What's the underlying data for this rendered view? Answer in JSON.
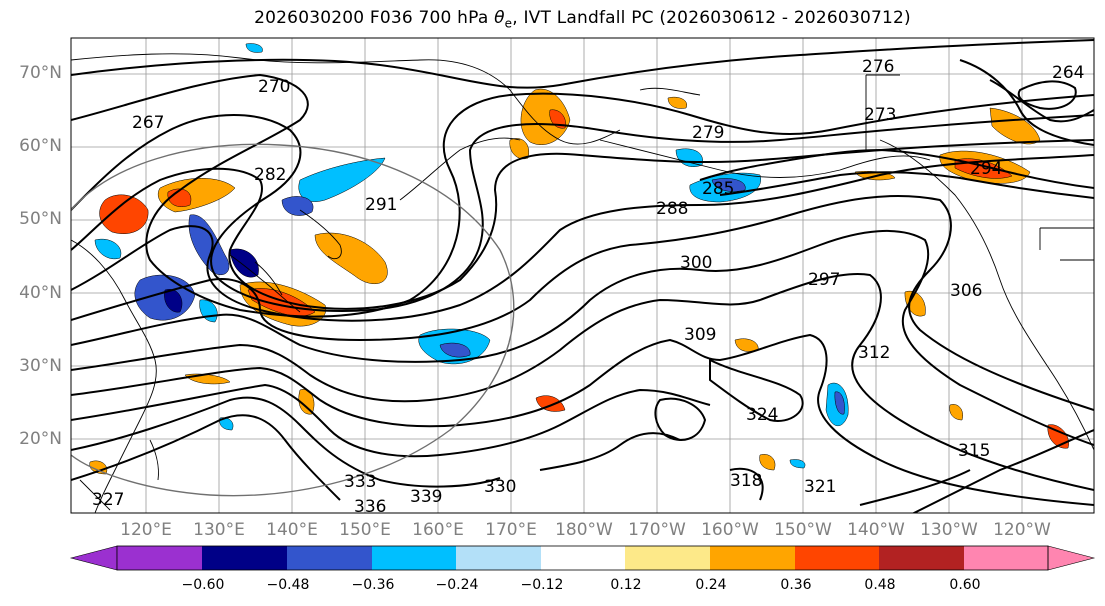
{
  "title": {
    "prefix": "2026030200 F036 700 hPa ",
    "theta": "θ",
    "sub": "e",
    "suffix": ", IVT Landfall PC (2026030612 - 2026030712)"
  },
  "map": {
    "lat_labels": [
      "70°N",
      "60°N",
      "50°N",
      "40°N",
      "30°N",
      "20°N"
    ],
    "lon_labels": [
      "120°E",
      "130°E",
      "140°E",
      "150°E",
      "160°E",
      "170°E",
      "180°W",
      "170°W",
      "160°W",
      "150°W",
      "140°W",
      "130°W",
      "120°W"
    ],
    "contour_labels": [
      "276",
      "264",
      "270",
      "267",
      "273",
      "279",
      "282",
      "291",
      "288",
      "285",
      "294",
      "297",
      "300",
      "306",
      "309",
      "312",
      "315",
      "318",
      "321",
      "324",
      "327",
      "330",
      "333",
      "336",
      "339"
    ]
  },
  "colorbar": {
    "ticks": [
      "−0.60",
      "−0.48",
      "−0.36",
      "−0.24",
      "−0.12",
      "0.12",
      "0.24",
      "0.36",
      "0.48",
      "0.60"
    ],
    "colors": {
      "under": "#9b30d0",
      "bins": [
        "#000087",
        "#3355cc",
        "#00bfff",
        "#b3e0f8",
        "#ffffff",
        "#fde989",
        "#ffa500",
        "#ff4500",
        "#b22222"
      ],
      "over": "#ff85b0"
    }
  }
}
